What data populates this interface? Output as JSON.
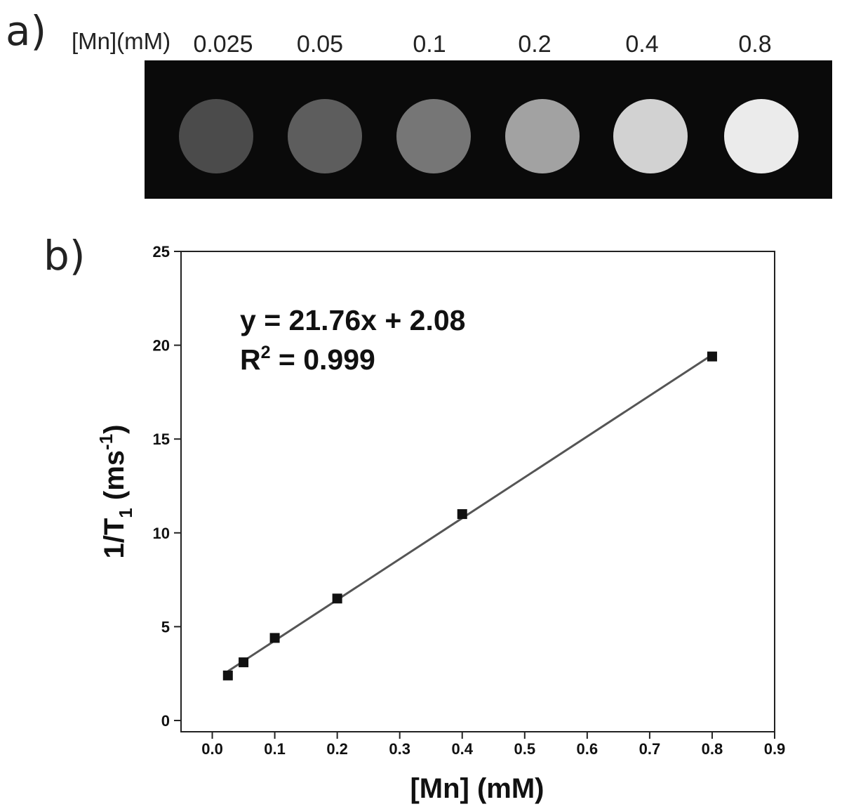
{
  "panel_a": {
    "label": "a)",
    "header": "[Mn](mM)",
    "concentrations": [
      "0.025",
      "0.05",
      "0.1",
      "0.2",
      "0.4",
      "0.8"
    ],
    "well_colors": [
      "#4b4b4b",
      "#5d5d5d",
      "#767676",
      "#a2a2a2",
      "#d2d2d2",
      "#ebebeb"
    ]
  },
  "panel_b": {
    "label": "b)"
  },
  "chart_data": {
    "type": "scatter",
    "xlabel": "[Mn] (mM)",
    "ylabel_main": "1/T",
    "ylabel_sub": "1",
    "ylabel_unit": " (ms",
    "ylabel_sup": "-1",
    "ylabel_close": ")",
    "xlim": [
      -0.05,
      0.9
    ],
    "ylim": [
      -0.6,
      25
    ],
    "xticks": [
      0.0,
      0.1,
      0.2,
      0.3,
      0.4,
      0.5,
      0.6,
      0.7,
      0.8,
      0.9
    ],
    "xtick_labels": [
      "0.0",
      "0.1",
      "0.2",
      "0.3",
      "0.4",
      "0.5",
      "0.6",
      "0.7",
      "0.8",
      "0.9"
    ],
    "yticks": [
      0,
      5,
      10,
      15,
      20,
      25
    ],
    "ytick_labels": [
      "0",
      "5",
      "10",
      "15",
      "20",
      "25"
    ],
    "grid": false,
    "series": [
      {
        "x": [
          0.025,
          0.05,
          0.1,
          0.2,
          0.4,
          0.8
        ],
        "y": [
          2.4,
          3.1,
          4.4,
          6.5,
          11.0,
          19.4
        ]
      }
    ],
    "fit": {
      "slope": 21.76,
      "intercept": 2.08,
      "x_range": [
        0.025,
        0.8
      ]
    },
    "annotation": {
      "equation": "y = 21.76x + 2.08",
      "r2_prefix": "R",
      "r2_sup": "2",
      "r2_value": " = 0.999"
    },
    "colors": {
      "line": "#555555",
      "marker": "#111111"
    }
  }
}
